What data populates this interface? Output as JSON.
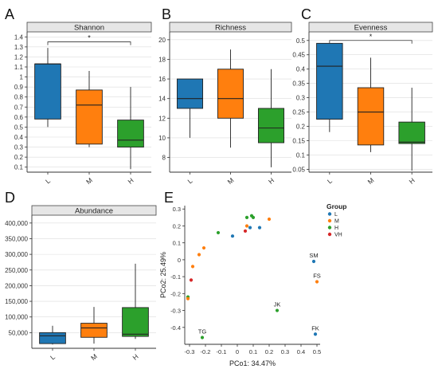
{
  "colors": {
    "L": "#1f77b4",
    "M": "#ff7f0e",
    "H": "#2ca02c",
    "VH": "#d62728",
    "strip_bg": "#e6e6e6",
    "grid": "#dcdcdc",
    "axis": "#333333"
  },
  "chart_data": [
    {
      "panel": "A",
      "type": "boxplot",
      "title": "Shannon",
      "categories": [
        "L",
        "M",
        "H"
      ],
      "ylim": [
        0.05,
        1.45
      ],
      "yticks": [
        0.1,
        0.2,
        0.3,
        0.4,
        0.5,
        0.6,
        0.7,
        0.8,
        0.9,
        1,
        1.1,
        1.2,
        1.3,
        1.4
      ],
      "ytick_labels": [
        "0.1",
        "0.2",
        "0.3",
        "0.4",
        "0.5",
        "0.6",
        "0.7",
        "0.8",
        "0.9",
        "1",
        "1.1",
        "1.2",
        "1.3",
        "1.4"
      ],
      "boxes": [
        {
          "category": "L",
          "min": 0.5,
          "q1": 0.58,
          "median": 1.13,
          "q3": 1.13,
          "max": 1.29
        },
        {
          "category": "M",
          "min": 0.3,
          "q1": 0.33,
          "median": 0.72,
          "q3": 0.87,
          "max": 1.06
        },
        {
          "category": "H",
          "min": 0.08,
          "q1": 0.3,
          "median": 0.37,
          "q3": 0.57,
          "max": 0.9
        }
      ],
      "significance": {
        "from": "L",
        "to": "H",
        "y": 1.35,
        "label": "*"
      }
    },
    {
      "panel": "B",
      "type": "boxplot",
      "title": "Richness",
      "categories": [
        "L",
        "M",
        "H"
      ],
      "ylim": [
        6.5,
        20.8
      ],
      "yticks": [
        8,
        10,
        12,
        14,
        16,
        18,
        20
      ],
      "ytick_labels": [
        "8",
        "10",
        "12",
        "14",
        "16",
        "18",
        "20"
      ],
      "boxes": [
        {
          "category": "L",
          "min": 10,
          "q1": 13,
          "median": 14,
          "q3": 16,
          "max": 16
        },
        {
          "category": "M",
          "min": 9,
          "q1": 12,
          "median": 14,
          "q3": 17,
          "max": 19
        },
        {
          "category": "H",
          "min": 7,
          "q1": 9.5,
          "median": 11,
          "q3": 13,
          "max": 17
        }
      ]
    },
    {
      "panel": "C",
      "type": "boxplot",
      "title": "Evenness",
      "categories": [
        "L",
        "M",
        "H"
      ],
      "ylim": [
        0.04,
        0.53
      ],
      "yticks": [
        0.05,
        0.1,
        0.15,
        0.2,
        0.25,
        0.3,
        0.35,
        0.4,
        0.45,
        0.5
      ],
      "ytick_labels": [
        "0.05",
        "0.1",
        "0.15",
        "0.2",
        "0.25",
        "0.3",
        "0.35",
        "0.4",
        "0.45",
        "0.5"
      ],
      "boxes": [
        {
          "category": "L",
          "min": 0.18,
          "q1": 0.225,
          "median": 0.41,
          "q3": 0.49,
          "max": 0.49
        },
        {
          "category": "M",
          "min": 0.11,
          "q1": 0.135,
          "median": 0.25,
          "q3": 0.335,
          "max": 0.44
        },
        {
          "category": "H",
          "min": 0.045,
          "q1": 0.14,
          "median": 0.145,
          "q3": 0.215,
          "max": 0.335
        }
      ],
      "significance": {
        "from": "L",
        "to": "H",
        "y": 0.5,
        "label": "*"
      }
    },
    {
      "panel": "D",
      "type": "boxplot",
      "title": "Abundance",
      "categories": [
        "L",
        "M",
        "H"
      ],
      "ylim": [
        0,
        425000
      ],
      "yticks": [
        50000,
        100000,
        150000,
        200000,
        250000,
        300000,
        350000,
        400000
      ],
      "ytick_labels": [
        "50,000",
        "100,000",
        "150,000",
        "200,000",
        "250,000",
        "300,000",
        "350,000",
        "400,000"
      ],
      "boxes": [
        {
          "category": "L",
          "min": 12000,
          "q1": 15000,
          "median": 40000,
          "q3": 50000,
          "max": 72000
        },
        {
          "category": "M",
          "min": 15000,
          "q1": 35000,
          "median": 65000,
          "q3": 80000,
          "max": 132000
        },
        {
          "category": "H",
          "min": 30000,
          "q1": 38000,
          "median": 45000,
          "q3": 130000,
          "max": 270000
        }
      ]
    },
    {
      "panel": "E",
      "type": "scatter",
      "xlabel": "PCo1: 34.47%",
      "ylabel": "PCo2: 25.49%",
      "xlim": [
        -0.33,
        0.52
      ],
      "ylim": [
        -0.5,
        0.32
      ],
      "xticks": [
        -0.3,
        -0.2,
        -0.1,
        0,
        0.1,
        0.2,
        0.3,
        0.4,
        0.5
      ],
      "xtick_labels": [
        "-0.3",
        "-0.2",
        "-0.1",
        "0",
        "0.1",
        "0.2",
        "0.3",
        "0.4",
        "0.5"
      ],
      "yticks": [
        -0.4,
        -0.3,
        -0.2,
        -0.1,
        0,
        0.1,
        0.2,
        0.3
      ],
      "ytick_labels": [
        "-0.4",
        "-0.3",
        "-0.2",
        "-0.1",
        "0",
        "0.1",
        "0.2",
        "0.3"
      ],
      "legend": {
        "title": "Group",
        "position": "right",
        "entries": [
          "L",
          "M",
          "H",
          "VH"
        ]
      },
      "points": [
        {
          "x": 0.06,
          "y": 0.25,
          "group": "H"
        },
        {
          "x": 0.09,
          "y": 0.26,
          "group": "H"
        },
        {
          "x": 0.1,
          "y": 0.25,
          "group": "H"
        },
        {
          "x": 0.2,
          "y": 0.24,
          "group": "M"
        },
        {
          "x": 0.06,
          "y": 0.2,
          "group": "M"
        },
        {
          "x": 0.08,
          "y": 0.19,
          "group": "L"
        },
        {
          "x": 0.14,
          "y": 0.19,
          "group": "L"
        },
        {
          "x": 0.05,
          "y": 0.17,
          "group": "VH"
        },
        {
          "x": -0.12,
          "y": 0.16,
          "group": "H"
        },
        {
          "x": -0.03,
          "y": 0.14,
          "group": "L"
        },
        {
          "x": -0.21,
          "y": 0.07,
          "group": "M"
        },
        {
          "x": -0.24,
          "y": 0.03,
          "group": "M"
        },
        {
          "x": -0.28,
          "y": -0.04,
          "group": "M"
        },
        {
          "x": -0.29,
          "y": -0.12,
          "group": "VH"
        },
        {
          "x": -0.31,
          "y": -0.22,
          "group": "H"
        },
        {
          "x": -0.31,
          "y": -0.23,
          "group": "M"
        },
        {
          "x": -0.22,
          "y": -0.46,
          "group": "H",
          "label": "TG"
        },
        {
          "x": 0.25,
          "y": -0.3,
          "group": "H",
          "label": "JK"
        },
        {
          "x": 0.48,
          "y": -0.01,
          "group": "L",
          "label": "SM"
        },
        {
          "x": 0.5,
          "y": -0.13,
          "group": "M",
          "label": "FS"
        },
        {
          "x": 0.49,
          "y": -0.44,
          "group": "L",
          "label": "FK"
        }
      ]
    }
  ]
}
